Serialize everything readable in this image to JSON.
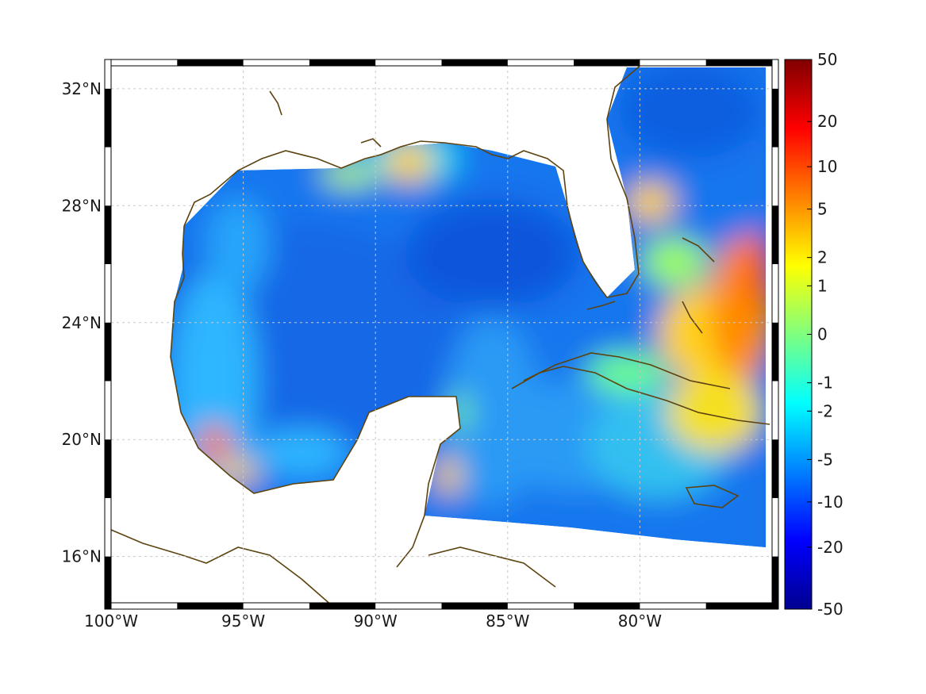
{
  "map": {
    "lon_range": [
      -100,
      -75
    ],
    "lat_range": [
      14.2,
      33
    ],
    "x_ticks": [
      {
        "lon": -100,
        "label": "100°W"
      },
      {
        "lon": -95,
        "label": "95°W"
      },
      {
        "lon": -90,
        "label": "90°W"
      },
      {
        "lon": -85,
        "label": "85°W"
      },
      {
        "lon": -80,
        "label": "80°W"
      }
    ],
    "y_ticks": [
      {
        "lat": 32,
        "label": "32°N"
      },
      {
        "lat": 28,
        "label": "28°N"
      },
      {
        "lat": 24,
        "label": "24°N"
      },
      {
        "lat": 20,
        "label": "20°N"
      },
      {
        "lat": 16,
        "label": "16°N"
      }
    ],
    "grid": true,
    "coastline_color": "#5c4310",
    "land_color": "#ffffff",
    "frame": "black-white alternating border"
  },
  "colorbar": {
    "ticks": [
      "50",
      "20",
      "10",
      "5",
      "2",
      "1",
      "0",
      "-1",
      "-2",
      "-5",
      "-10",
      "-20",
      "-50"
    ],
    "colormap": "jet",
    "placement": "right"
  }
}
